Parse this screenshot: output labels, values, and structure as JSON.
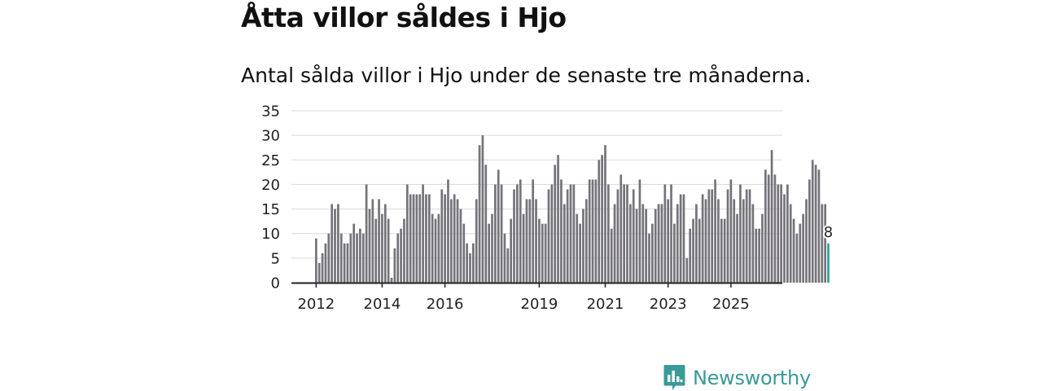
{
  "headline": "Åtta villor såldes i Hjo",
  "subtitle": "Antal sålda villor i Hjo under de senaste tre månaderna.",
  "brand": "Newsworthy",
  "colors": {
    "bar": "#75737a",
    "highlight": "#2aa0a0",
    "grid": "#d9d9d9",
    "axis": "#222222",
    "brand": "#3a9a98"
  },
  "chart_data": {
    "type": "bar",
    "title": "Åtta villor såldes i Hjo",
    "subtitle": "Antal sålda villor i Hjo under de senaste tre månaderna.",
    "xlabel": "",
    "ylabel": "",
    "ylim": [
      0,
      35
    ],
    "yticks": [
      0,
      5,
      10,
      15,
      20,
      25,
      30,
      35
    ],
    "x_start": "2012-01",
    "xticks": [
      {
        "label": "2012",
        "index": 0
      },
      {
        "label": "2014",
        "index": 21
      },
      {
        "label": "2016",
        "index": 41
      },
      {
        "label": "2019",
        "index": 71
      },
      {
        "label": "2021",
        "index": 92
      },
      {
        "label": "2023",
        "index": 112
      },
      {
        "label": "2025",
        "index": 132
      }
    ],
    "grid": true,
    "values": [
      9,
      4,
      6,
      8,
      10,
      16,
      15,
      16,
      10,
      8,
      8,
      10,
      12,
      10,
      11,
      10,
      20,
      15,
      17,
      13,
      17,
      14,
      16,
      13,
      1,
      7,
      10,
      11,
      13,
      20,
      18,
      18,
      18,
      18,
      20,
      18,
      18,
      14,
      13,
      14,
      19,
      18,
      21,
      17,
      18,
      17,
      15,
      12,
      8,
      6,
      8,
      17,
      28,
      30,
      24,
      12,
      14,
      20,
      23,
      20,
      10,
      7,
      13,
      19,
      20,
      21,
      14,
      17,
      17,
      21,
      17,
      13,
      12,
      12,
      19,
      20,
      24,
      26,
      21,
      16,
      19,
      20,
      20,
      14,
      12,
      15,
      17,
      21,
      21,
      21,
      25,
      26,
      28,
      20,
      11,
      16,
      19,
      22,
      20,
      20,
      16,
      19,
      15,
      21,
      16,
      15,
      10,
      12,
      15,
      16,
      16,
      20,
      17,
      20,
      12,
      16,
      18,
      18,
      5,
      11,
      13,
      16,
      13,
      18,
      17,
      19,
      19,
      21,
      17,
      13,
      13,
      19,
      21,
      17,
      14,
      20,
      17,
      19,
      19,
      16,
      11,
      11,
      14,
      23,
      22,
      27,
      22,
      20,
      20,
      18,
      20,
      16,
      13,
      10,
      12,
      14,
      17,
      21,
      25,
      24,
      23,
      16,
      16,
      8
    ],
    "highlight_label": "8"
  }
}
